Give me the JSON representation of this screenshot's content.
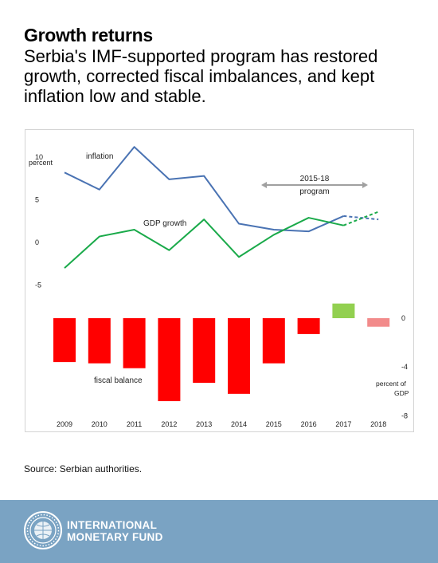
{
  "header": {
    "title": "Growth returns",
    "subtitle": "Serbia's IMF-supported program has restored growth, corrected fiscal imbalances, and kept inflation low and stable."
  },
  "chart_data": {
    "type": "line+bar",
    "categories": [
      "2009",
      "2010",
      "2011",
      "2012",
      "2013",
      "2014",
      "2015",
      "2016",
      "2017",
      "2018"
    ],
    "top_panel": {
      "unit_label": "percent",
      "yticks": [
        "10",
        "5",
        "0",
        "-5"
      ],
      "ytick_values": [
        10,
        5,
        0,
        -5
      ],
      "ylim": [
        -5,
        10
      ],
      "series": [
        {
          "name": "inflation",
          "color": "#4a73b3",
          "values": [
            8.1,
            6.1,
            11.1,
            7.3,
            7.7,
            2.1,
            1.4,
            1.2,
            3.0,
            2.6
          ],
          "projected_from_index": 8
        },
        {
          "name": "GDP growth",
          "color": "#1aaa4a",
          "values": [
            -3.1,
            0.6,
            1.4,
            -1.0,
            2.6,
            -1.8,
            0.8,
            2.8,
            1.9,
            3.5
          ],
          "projected_from_index": 8
        }
      ],
      "program_annotation": {
        "label_line1": "2015-18",
        "label_line2": "program",
        "from": "2015",
        "to": "2018"
      }
    },
    "bottom_panel": {
      "series_name": "fiscal balance",
      "unit_label_line1": "percent of",
      "unit_label_line2": "GDP",
      "yticks": [
        "0",
        "-4",
        "-8"
      ],
      "ytick_values": [
        0,
        -4,
        -8
      ],
      "ylim": [
        -8,
        1.2
      ],
      "values": [
        -3.6,
        -3.7,
        -4.1,
        -6.8,
        -5.3,
        -6.2,
        -3.7,
        -1.3,
        1.2,
        -0.7
      ],
      "colors": {
        "deficit": "#ff0000",
        "surplus": "#92d050",
        "projection": "#f28b8b"
      }
    }
  },
  "source": "Source: Serbian authorities.",
  "footer": {
    "org_line1": "INTERNATIONAL",
    "org_line2": "MONETARY FUND",
    "bg_color": "#7aa3c3"
  }
}
